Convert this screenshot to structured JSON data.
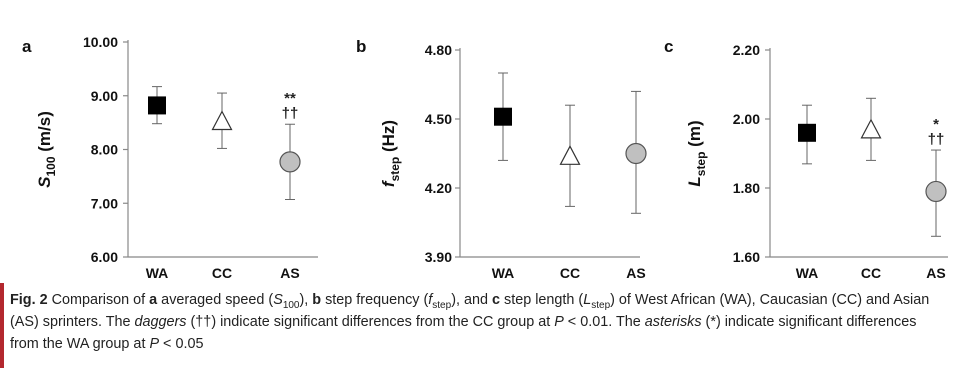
{
  "chart_data": [
    {
      "type": "scatter",
      "panel": "a",
      "ylabel": "S",
      "ylabel_sub": "100",
      "ylabel_unit": " (m/s)",
      "categories": [
        "WA",
        "CC",
        "AS"
      ],
      "ylim": [
        6.0,
        10.0
      ],
      "yticks": [
        "6.00",
        "7.00",
        "8.00",
        "9.00",
        "10.00"
      ],
      "ytick_values": [
        6.0,
        7.0,
        8.0,
        9.0,
        10.0
      ],
      "markers": [
        "square",
        "triangle",
        "circle"
      ],
      "means": [
        8.82,
        8.53,
        7.77
      ],
      "err_low": [
        8.48,
        8.02,
        7.07
      ],
      "err_high": [
        9.17,
        9.05,
        8.47
      ],
      "annotations": [
        {
          "category": "AS",
          "lines": [
            "**",
            "††"
          ]
        }
      ]
    },
    {
      "type": "scatter",
      "panel": "b",
      "ylabel": "f",
      "ylabel_sub": "step",
      "ylabel_unit": " (Hz)",
      "categories": [
        "WA",
        "CC",
        "AS"
      ],
      "ylim": [
        3.9,
        4.8
      ],
      "yticks": [
        "3.90",
        "4.20",
        "4.50",
        "4.80"
      ],
      "ytick_values": [
        3.9,
        4.2,
        4.5,
        4.8
      ],
      "markers": [
        "square",
        "triangle",
        "circle"
      ],
      "means": [
        4.51,
        4.34,
        4.35
      ],
      "err_low": [
        4.32,
        4.12,
        4.09
      ],
      "err_high": [
        4.7,
        4.56,
        4.62
      ],
      "annotations": []
    },
    {
      "type": "scatter",
      "panel": "c",
      "ylabel": "L",
      "ylabel_sub": "step",
      "ylabel_unit": " (m)",
      "categories": [
        "WA",
        "CC",
        "AS"
      ],
      "ylim": [
        1.6,
        2.2
      ],
      "yticks": [
        "1.60",
        "1.80",
        "2.00",
        "2.20"
      ],
      "ytick_values": [
        1.6,
        1.8,
        2.0,
        2.2
      ],
      "markers": [
        "square",
        "triangle",
        "circle"
      ],
      "means": [
        1.96,
        1.97,
        1.79
      ],
      "err_low": [
        1.87,
        1.88,
        1.66
      ],
      "err_high": [
        2.04,
        2.06,
        1.91
      ],
      "annotations": [
        {
          "category": "AS",
          "lines": [
            "*",
            "††"
          ]
        }
      ]
    }
  ],
  "colors": {
    "marker_fill_wa": "#000000",
    "marker_fill_cc": "#ffffff",
    "marker_fill_as": "#c0c0c0",
    "caption_rule": "#b3282e"
  },
  "caption": {
    "fig_label": "Fig. 2",
    "t1": "  Comparison of ",
    "a": "a",
    "t2": " averaged speed (",
    "S": "S",
    "S_sub": "100",
    "t3": "), ",
    "b": "b",
    "t4": " step frequency (",
    "f": "f",
    "f_sub": "step",
    "t5": "), and ",
    "c": "c",
    "t6": " step length (",
    "L": "L",
    "L_sub": "step",
    "t7": ") of West African (WA), Caucasian (CC) and Asian (AS) sprinters. The ",
    "daggers": "daggers",
    "t8": " (††) indicate significant differences from the CC group at ",
    "P1": "P",
    "t9": " < 0.01. The ",
    "asterisks": "asterisks",
    "t10": " (*) indicate significant differences from the WA group at ",
    "P2": "P",
    "t11": " < 0.05"
  }
}
